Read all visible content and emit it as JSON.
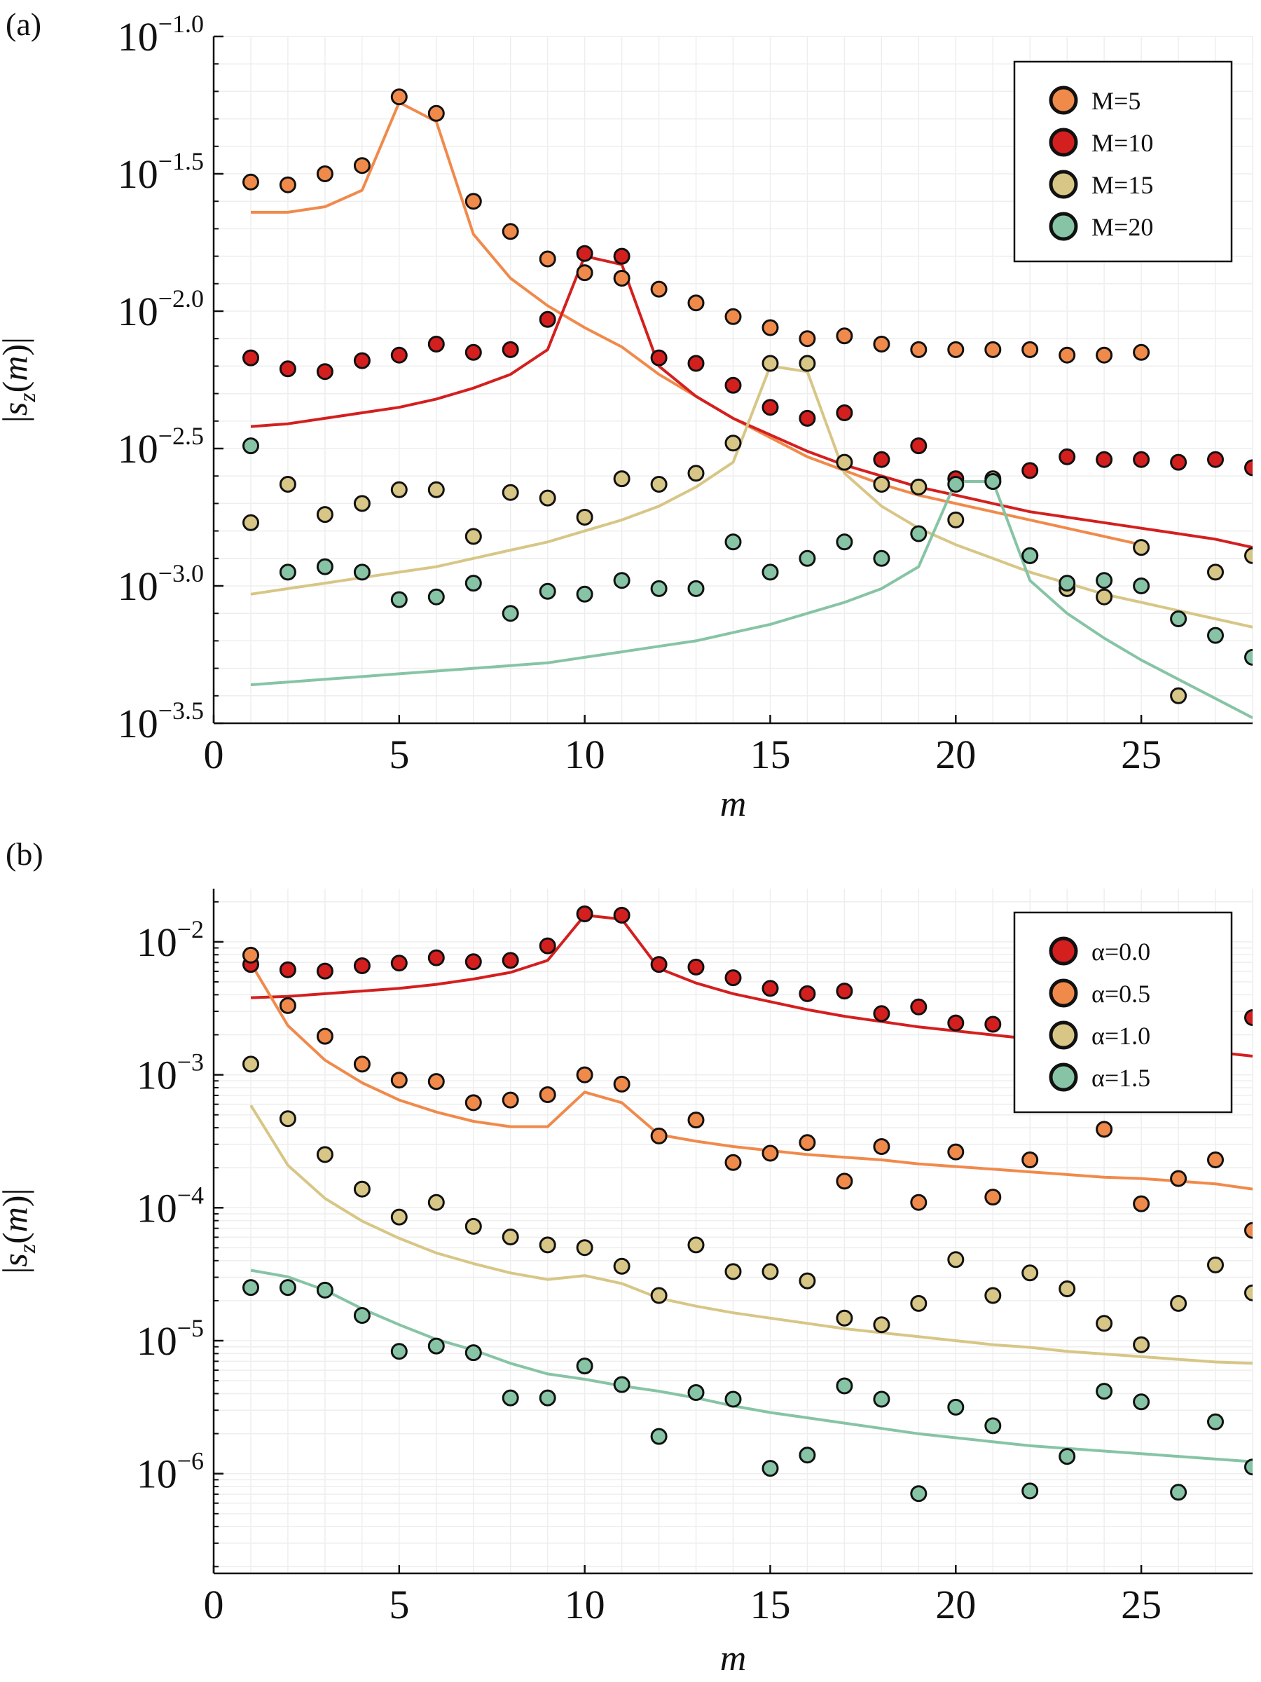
{
  "figure": {
    "panels": [
      {
        "label": "(a)",
        "xlabel": "m",
        "ylabel": "|s_z(m)|"
      },
      {
        "label": "(b)",
        "xlabel": "m",
        "ylabel": "|s_z(m)|"
      }
    ]
  },
  "chart_data": [
    {
      "type": "scatter",
      "panel": "(a)",
      "title": "",
      "xlabel": "m",
      "ylabel": "|s_z(m)|",
      "y_scale": "log10",
      "xlim": [
        0,
        28
      ],
      "ylim_log10": [
        -3.5,
        -1.0
      ],
      "x_ticks": [
        0,
        5,
        10,
        15,
        20,
        25
      ],
      "y_ticks_log10": [
        -1.0,
        -1.5,
        -2.0,
        -2.5,
        -3.0,
        -3.5
      ],
      "y_tick_labels": [
        "10^-1.0",
        "10^-1.5",
        "10^-2.0",
        "10^-2.5",
        "10^-3.0",
        "10^-3.5"
      ],
      "grid": true,
      "legend_position": "top-right",
      "series": [
        {
          "name": "M=5",
          "color": "#f08a4b",
          "points_x": [
            1,
            2,
            3,
            4,
            5,
            6,
            7,
            8,
            9,
            10,
            11,
            12,
            13,
            14,
            15,
            16,
            17,
            18,
            19,
            20,
            21,
            22,
            23,
            24,
            25
          ],
          "points_log10_y": [
            -1.53,
            -1.54,
            -1.5,
            -1.47,
            -1.22,
            -1.28,
            -1.6,
            -1.71,
            -1.81,
            -1.86,
            -1.88,
            -1.92,
            -1.97,
            -2.02,
            -2.06,
            -2.1,
            -2.09,
            -2.12,
            -2.14,
            -2.14,
            -2.14,
            -2.14,
            -2.16,
            -2.16,
            -2.15
          ],
          "line_x": [
            1,
            2,
            3,
            4,
            5,
            6,
            7,
            8,
            9,
            10,
            11,
            12,
            13,
            14,
            15,
            16,
            17,
            18,
            19,
            20,
            21,
            22,
            23,
            24,
            25
          ],
          "line_log10_y": [
            -1.64,
            -1.64,
            -1.62,
            -1.56,
            -1.24,
            -1.31,
            -1.72,
            -1.88,
            -1.98,
            -2.06,
            -2.13,
            -2.23,
            -2.31,
            -2.39,
            -2.46,
            -2.53,
            -2.58,
            -2.63,
            -2.67,
            -2.7,
            -2.73,
            -2.76,
            -2.79,
            -2.82,
            -2.85
          ]
        },
        {
          "name": "M=10",
          "color": "#d41f1f",
          "points_x": [
            1,
            2,
            3,
            4,
            5,
            6,
            7,
            8,
            9,
            10,
            11,
            12,
            13,
            14,
            15,
            16,
            17,
            18,
            19,
            20,
            21,
            22,
            23,
            24,
            25,
            26,
            27,
            28
          ],
          "points_log10_y": [
            -2.17,
            -2.21,
            -2.22,
            -2.18,
            -2.16,
            -2.12,
            -2.15,
            -2.14,
            -2.03,
            -1.79,
            -1.8,
            -2.17,
            -2.19,
            -2.27,
            -2.35,
            -2.39,
            -2.37,
            -2.54,
            -2.49,
            -2.61,
            -2.62,
            -2.58,
            -2.53,
            -2.54,
            -2.54,
            -2.55,
            -2.54,
            -2.57
          ],
          "line_x": [
            1,
            2,
            3,
            4,
            5,
            6,
            7,
            8,
            9,
            10,
            11,
            12,
            13,
            14,
            15,
            16,
            17,
            18,
            19,
            20,
            21,
            22,
            23,
            24,
            25,
            26,
            27,
            28
          ],
          "line_log10_y": [
            -2.42,
            -2.41,
            -2.39,
            -2.37,
            -2.35,
            -2.32,
            -2.28,
            -2.23,
            -2.14,
            -1.8,
            -1.83,
            -2.2,
            -2.31,
            -2.39,
            -2.45,
            -2.51,
            -2.56,
            -2.6,
            -2.64,
            -2.67,
            -2.7,
            -2.73,
            -2.75,
            -2.77,
            -2.79,
            -2.81,
            -2.83,
            -2.86
          ]
        },
        {
          "name": "M=15",
          "color": "#d7c686",
          "points_x": [
            1,
            2,
            3,
            4,
            5,
            6,
            7,
            8,
            9,
            10,
            11,
            12,
            13,
            14,
            15,
            16,
            17,
            18,
            19,
            20,
            21,
            22,
            23,
            24,
            25,
            26,
            27,
            28
          ],
          "points_log10_y": [
            -2.77,
            -2.63,
            -2.74,
            -2.7,
            -2.65,
            -2.65,
            -2.82,
            -2.66,
            -2.68,
            -2.75,
            -2.61,
            -2.63,
            -2.59,
            -2.48,
            -2.19,
            -2.19,
            -2.55,
            -2.63,
            -2.64,
            -2.76,
            -2.61,
            -2.89,
            -3.01,
            -3.04,
            -2.86,
            -3.4,
            -2.95,
            -2.89
          ],
          "line_x": [
            1,
            2,
            3,
            4,
            5,
            6,
            7,
            8,
            9,
            10,
            11,
            12,
            13,
            14,
            15,
            16,
            17,
            18,
            19,
            20,
            21,
            22,
            23,
            24,
            25,
            26,
            27,
            28
          ],
          "line_log10_y": [
            -3.03,
            -3.01,
            -2.99,
            -2.97,
            -2.95,
            -2.93,
            -2.9,
            -2.87,
            -2.84,
            -2.8,
            -2.76,
            -2.71,
            -2.64,
            -2.55,
            -2.2,
            -2.22,
            -2.59,
            -2.71,
            -2.79,
            -2.85,
            -2.9,
            -2.95,
            -2.99,
            -3.03,
            -3.06,
            -3.09,
            -3.12,
            -3.15
          ]
        },
        {
          "name": "M=20",
          "color": "#86c4a5",
          "points_x": [
            1,
            2,
            3,
            4,
            5,
            6,
            7,
            8,
            9,
            10,
            11,
            12,
            13,
            14,
            15,
            16,
            17,
            18,
            19,
            20,
            21,
            22,
            23,
            24,
            25,
            26,
            27,
            28
          ],
          "points_log10_y": [
            -2.49,
            -2.95,
            -2.93,
            -2.95,
            -3.05,
            -3.04,
            -2.99,
            -3.1,
            -3.02,
            -3.03,
            -2.98,
            -3.01,
            -3.01,
            -2.84,
            -2.95,
            -2.9,
            -2.84,
            -2.9,
            -2.81,
            -2.63,
            -2.62,
            -2.89,
            -2.99,
            -2.98,
            -3.0,
            -3.12,
            -3.18,
            -3.26
          ],
          "line_x": [
            1,
            2,
            3,
            4,
            5,
            6,
            7,
            8,
            9,
            10,
            11,
            12,
            13,
            14,
            15,
            16,
            17,
            18,
            19,
            20,
            21,
            22,
            23,
            24,
            25,
            26,
            27,
            28
          ],
          "line_log10_y": [
            -3.36,
            -3.35,
            -3.34,
            -3.33,
            -3.32,
            -3.31,
            -3.3,
            -3.29,
            -3.28,
            -3.26,
            -3.24,
            -3.22,
            -3.2,
            -3.17,
            -3.14,
            -3.1,
            -3.06,
            -3.01,
            -2.93,
            -2.62,
            -2.62,
            -2.98,
            -3.1,
            -3.19,
            -3.27,
            -3.34,
            -3.41,
            -3.48
          ]
        }
      ]
    },
    {
      "type": "scatter",
      "panel": "(b)",
      "title": "",
      "xlabel": "m",
      "ylabel": "|s_z(m)|",
      "y_scale": "log10",
      "xlim": [
        0,
        28
      ],
      "ylim_log10": [
        -6.75,
        -1.6
      ],
      "x_ticks": [
        0,
        5,
        10,
        15,
        20,
        25
      ],
      "y_ticks_log10": [
        -2,
        -3,
        -4,
        -5,
        -6
      ],
      "y_tick_labels": [
        "10^-2",
        "10^-3",
        "10^-4",
        "10^-5",
        "10^-6"
      ],
      "grid": true,
      "legend_position": "top-right",
      "series": [
        {
          "name": "α=0.0",
          "color": "#d41f1f",
          "points_x": [
            1,
            2,
            3,
            4,
            5,
            6,
            7,
            8,
            9,
            10,
            11,
            12,
            13,
            14,
            15,
            16,
            17,
            18,
            19,
            20,
            21,
            22,
            23,
            24,
            25,
            26,
            27,
            28
          ],
          "points_log10_y": [
            -2.17,
            -2.21,
            -2.22,
            -2.18,
            -2.16,
            -2.12,
            -2.15,
            -2.14,
            -2.03,
            -1.79,
            -1.8,
            -2.17,
            -2.19,
            -2.27,
            -2.35,
            -2.39,
            -2.37,
            -2.54,
            -2.49,
            -2.61,
            -2.62,
            -2.58,
            -2.53,
            -2.54,
            -2.54,
            -2.55,
            -2.54,
            -2.57
          ],
          "line_x": [
            1,
            2,
            3,
            4,
            5,
            6,
            7,
            8,
            9,
            10,
            11,
            12,
            13,
            14,
            15,
            16,
            17,
            18,
            19,
            20,
            21,
            22,
            23,
            24,
            25,
            26,
            27,
            28
          ],
          "line_log10_y": [
            -2.42,
            -2.41,
            -2.39,
            -2.37,
            -2.35,
            -2.32,
            -2.28,
            -2.23,
            -2.14,
            -1.8,
            -1.83,
            -2.2,
            -2.31,
            -2.39,
            -2.45,
            -2.51,
            -2.56,
            -2.6,
            -2.64,
            -2.67,
            -2.7,
            -2.73,
            -2.75,
            -2.77,
            -2.79,
            -2.81,
            -2.83,
            -2.86
          ]
        },
        {
          "name": "α=0.5",
          "color": "#f08a4b",
          "points_x": [
            1,
            2,
            3,
            4,
            5,
            6,
            7,
            8,
            9,
            10,
            11,
            12,
            13,
            14,
            15,
            16,
            17,
            18,
            19,
            20,
            21,
            22,
            23,
            24,
            25,
            26,
            27,
            28
          ],
          "points_log10_y": [
            -2.1,
            -2.48,
            -2.71,
            -2.92,
            -3.04,
            -3.05,
            -3.21,
            -3.19,
            -3.15,
            -3.0,
            -3.07,
            -3.46,
            -3.34,
            -3.66,
            -3.59,
            -3.51,
            -3.8,
            -3.54,
            -3.96,
            -3.58,
            -3.92,
            -3.64,
            -3.22,
            -3.41,
            -3.97,
            -3.78,
            -3.64,
            -4.17
          ],
          "line_x": [
            1,
            2,
            3,
            4,
            5,
            6,
            7,
            8,
            9,
            10,
            11,
            12,
            13,
            14,
            15,
            16,
            17,
            18,
            19,
            20,
            21,
            22,
            23,
            24,
            25,
            26,
            27,
            28
          ],
          "line_log10_y": [
            -2.16,
            -2.63,
            -2.89,
            -3.06,
            -3.19,
            -3.28,
            -3.35,
            -3.39,
            -3.39,
            -3.13,
            -3.21,
            -3.45,
            -3.5,
            -3.54,
            -3.57,
            -3.6,
            -3.62,
            -3.64,
            -3.67,
            -3.69,
            -3.71,
            -3.73,
            -3.75,
            -3.77,
            -3.78,
            -3.8,
            -3.82,
            -3.86
          ]
        },
        {
          "name": "α=1.0",
          "color": "#d7c686",
          "points_x": [
            1,
            2,
            3,
            4,
            5,
            6,
            7,
            8,
            9,
            10,
            11,
            12,
            13,
            14,
            15,
            16,
            17,
            18,
            19,
            20,
            21,
            22,
            23,
            24,
            25,
            26,
            27,
            28
          ],
          "points_log10_y": [
            -2.92,
            -3.33,
            -3.6,
            -3.86,
            -4.07,
            -3.96,
            -4.14,
            -4.22,
            -4.28,
            -4.3,
            -4.44,
            -4.66,
            -4.28,
            -4.48,
            -4.48,
            -4.55,
            -4.83,
            -4.88,
            -4.72,
            -4.39,
            -4.66,
            -4.49,
            -4.61,
            -4.87,
            -5.03,
            -4.72,
            -4.43,
            -4.64
          ],
          "line_x": [
            1,
            2,
            3,
            4,
            5,
            6,
            7,
            8,
            9,
            10,
            11,
            12,
            13,
            14,
            15,
            16,
            17,
            18,
            19,
            20,
            21,
            22,
            23,
            24,
            25,
            26,
            27,
            28
          ],
          "line_log10_y": [
            -3.23,
            -3.68,
            -3.93,
            -4.1,
            -4.23,
            -4.34,
            -4.42,
            -4.49,
            -4.54,
            -4.51,
            -4.57,
            -4.68,
            -4.74,
            -4.79,
            -4.83,
            -4.87,
            -4.91,
            -4.94,
            -4.97,
            -5.0,
            -5.03,
            -5.05,
            -5.08,
            -5.1,
            -5.12,
            -5.14,
            -5.16,
            -5.17
          ]
        },
        {
          "name": "α=1.5",
          "color": "#86c4a5",
          "points_x": [
            1,
            2,
            3,
            4,
            5,
            6,
            7,
            8,
            9,
            10,
            11,
            12,
            13,
            14,
            15,
            16,
            17,
            18,
            19,
            20,
            21,
            22,
            23,
            24,
            25,
            26,
            27,
            28
          ],
          "points_log10_y": [
            -4.6,
            -4.6,
            -4.62,
            -4.81,
            -5.08,
            -5.04,
            -5.09,
            -5.43,
            -5.43,
            -5.19,
            -5.33,
            -5.72,
            -5.39,
            -5.44,
            -5.96,
            -5.86,
            -5.34,
            -5.44,
            -6.15,
            -5.5,
            -5.64,
            -6.13,
            -5.87,
            -5.38,
            -5.46,
            -6.14,
            -5.61,
            -5.95
          ],
          "line_x": [
            1,
            2,
            3,
            4,
            5,
            6,
            7,
            8,
            9,
            10,
            11,
            12,
            13,
            14,
            15,
            16,
            17,
            18,
            19,
            20,
            21,
            22,
            23,
            24,
            25,
            26,
            27,
            28
          ],
          "line_log10_y": [
            -4.47,
            -4.52,
            -4.62,
            -4.76,
            -4.88,
            -4.99,
            -5.07,
            -5.17,
            -5.25,
            -5.29,
            -5.34,
            -5.38,
            -5.43,
            -5.49,
            -5.54,
            -5.58,
            -5.62,
            -5.66,
            -5.7,
            -5.73,
            -5.76,
            -5.79,
            -5.81,
            -5.83,
            -5.85,
            -5.87,
            -5.89,
            -5.91
          ]
        }
      ]
    }
  ]
}
